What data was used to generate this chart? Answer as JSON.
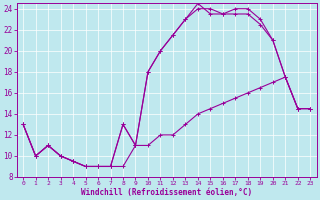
{
  "xlabel": "Windchill (Refroidissement éolien,°C)",
  "xlim": [
    -0.5,
    23.5
  ],
  "ylim": [
    8,
    24.5
  ],
  "xticks": [
    0,
    1,
    2,
    3,
    4,
    5,
    6,
    7,
    8,
    9,
    10,
    11,
    12,
    13,
    14,
    15,
    16,
    17,
    18,
    19,
    20,
    21,
    22,
    23
  ],
  "yticks": [
    8,
    10,
    12,
    14,
    16,
    18,
    20,
    22,
    24
  ],
  "bg_color": "#bfe8ee",
  "line_color": "#990099",
  "line1_x": [
    0,
    1,
    2,
    3,
    4,
    5,
    6,
    7,
    8,
    9,
    10,
    11,
    12,
    13,
    14,
    15,
    16,
    17,
    18,
    19,
    20,
    21,
    22,
    23
  ],
  "line1_y": [
    13,
    10,
    11,
    10,
    9.5,
    9,
    9,
    9,
    9,
    11,
    11,
    12,
    12,
    13,
    14,
    14.5,
    15,
    15.5,
    16,
    16.5,
    17,
    17.5,
    14.5,
    14.5
  ],
  "line2_x": [
    0,
    1,
    2,
    3,
    4,
    5,
    6,
    7,
    8,
    9,
    10,
    11,
    12,
    13,
    14,
    15,
    16,
    17,
    18,
    19,
    20,
    21,
    22,
    23
  ],
  "line2_y": [
    13,
    10,
    11,
    10,
    9.5,
    9,
    9,
    9,
    13,
    11,
    18,
    20,
    21.5,
    23,
    24,
    24,
    23.5,
    23.5,
    23.5,
    22.5,
    21,
    17.5,
    14.5,
    14.5
  ],
  "line3_x": [
    0,
    1,
    2,
    3,
    4,
    5,
    6,
    7,
    8,
    9,
    10,
    11,
    12,
    13,
    14,
    15,
    16,
    17,
    18,
    19,
    20,
    21,
    22,
    23
  ],
  "line3_y": [
    13,
    10,
    11,
    10,
    9.5,
    9,
    9,
    9,
    13,
    11,
    18,
    20,
    21.5,
    23,
    24.5,
    23.5,
    23.5,
    24,
    24,
    23,
    21,
    17.5,
    14.5,
    14.5
  ]
}
